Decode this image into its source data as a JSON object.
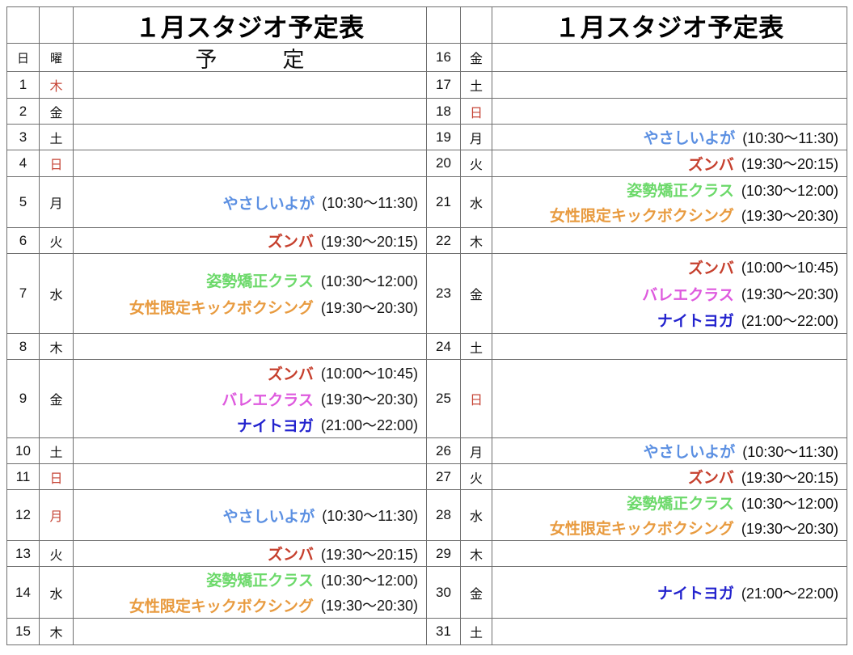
{
  "titles": {
    "left": "１月スタジオ予定表",
    "right": "１月スタジオ予定表"
  },
  "header": {
    "day": "日",
    "weekday": "曜",
    "schedule": "予　　　定"
  },
  "colors": {
    "border": "#6f6f6f",
    "holiday": "#c64537",
    "classes": {
      "yasashii_yoga": "#5c90e2",
      "zumba": "#c6402e",
      "shisei_kyosei": "#6cd96a",
      "kickboxing": "#e89b40",
      "ballet": "#de5ade",
      "night_yoga": "#2323ce"
    }
  },
  "days": [
    {
      "day": "1",
      "weekday": "木",
      "holiday": true,
      "entries": []
    },
    {
      "day": "2",
      "weekday": "金",
      "holiday": false,
      "entries": []
    },
    {
      "day": "3",
      "weekday": "土",
      "holiday": false,
      "entries": []
    },
    {
      "day": "4",
      "weekday": "日",
      "holiday": true,
      "entries": []
    },
    {
      "day": "5",
      "weekday": "月",
      "holiday": false,
      "entries": [
        {
          "label": "やさしいよが",
          "time": "(10:30〜11:30)",
          "color": "yasashii_yoga"
        }
      ]
    },
    {
      "day": "6",
      "weekday": "火",
      "holiday": false,
      "entries": [
        {
          "label": "ズンバ",
          "time": "(19:30〜20:15)",
          "color": "zumba"
        }
      ]
    },
    {
      "day": "7",
      "weekday": "水",
      "holiday": false,
      "entries": [
        {
          "label": "姿勢矯正クラス",
          "time": "(10:30〜12:00)",
          "color": "shisei_kyosei"
        },
        {
          "label": "女性限定キックボクシング",
          "time": "(19:30〜20:30)",
          "color": "kickboxing"
        }
      ]
    },
    {
      "day": "8",
      "weekday": "木",
      "holiday": false,
      "entries": []
    },
    {
      "day": "9",
      "weekday": "金",
      "holiday": false,
      "entries": [
        {
          "label": "ズンバ",
          "time": "(10:00〜10:45)",
          "color": "zumba"
        },
        {
          "label": "バレエクラス",
          "time": "(19:30〜20:30)",
          "color": "ballet"
        },
        {
          "label": "ナイトヨガ",
          "time": "(21:00〜22:00)",
          "color": "night_yoga"
        }
      ]
    },
    {
      "day": "10",
      "weekday": "土",
      "holiday": false,
      "entries": []
    },
    {
      "day": "11",
      "weekday": "日",
      "holiday": true,
      "entries": []
    },
    {
      "day": "12",
      "weekday": "月",
      "holiday": true,
      "entries": [
        {
          "label": "やさしいよが",
          "time": "(10:30〜11:30)",
          "color": "yasashii_yoga"
        }
      ]
    },
    {
      "day": "13",
      "weekday": "火",
      "holiday": false,
      "entries": [
        {
          "label": "ズンバ",
          "time": "(19:30〜20:15)",
          "color": "zumba"
        }
      ]
    },
    {
      "day": "14",
      "weekday": "水",
      "holiday": false,
      "entries": [
        {
          "label": "姿勢矯正クラス",
          "time": "(10:30〜12:00)",
          "color": "shisei_kyosei"
        },
        {
          "label": "女性限定キックボクシング",
          "time": "(19:30〜20:30)",
          "color": "kickboxing"
        }
      ]
    },
    {
      "day": "15",
      "weekday": "木",
      "holiday": false,
      "entries": []
    },
    {
      "day": "16",
      "weekday": "金",
      "holiday": false,
      "entries": []
    },
    {
      "day": "17",
      "weekday": "土",
      "holiday": false,
      "entries": []
    },
    {
      "day": "18",
      "weekday": "日",
      "holiday": true,
      "entries": []
    },
    {
      "day": "19",
      "weekday": "月",
      "holiday": false,
      "entries": [
        {
          "label": "やさしいよが",
          "time": "(10:30〜11:30)",
          "color": "yasashii_yoga"
        }
      ]
    },
    {
      "day": "20",
      "weekday": "火",
      "holiday": false,
      "entries": [
        {
          "label": "ズンバ",
          "time": "(19:30〜20:15)",
          "color": "zumba"
        }
      ]
    },
    {
      "day": "21",
      "weekday": "水",
      "holiday": false,
      "entries": [
        {
          "label": "姿勢矯正クラス",
          "time": "(10:30〜12:00)",
          "color": "shisei_kyosei"
        },
        {
          "label": "女性限定キックボクシング",
          "time": "(19:30〜20:30)",
          "color": "kickboxing"
        }
      ]
    },
    {
      "day": "22",
      "weekday": "木",
      "holiday": false,
      "entries": []
    },
    {
      "day": "23",
      "weekday": "金",
      "holiday": false,
      "entries": [
        {
          "label": "ズンバ",
          "time": "(10:00〜10:45)",
          "color": "zumba"
        },
        {
          "label": "バレエクラス",
          "time": "(19:30〜20:30)",
          "color": "ballet"
        },
        {
          "label": "ナイトヨガ",
          "time": "(21:00〜22:00)",
          "color": "night_yoga"
        }
      ]
    },
    {
      "day": "24",
      "weekday": "土",
      "holiday": false,
      "entries": []
    },
    {
      "day": "25",
      "weekday": "日",
      "holiday": true,
      "entries": []
    },
    {
      "day": "26",
      "weekday": "月",
      "holiday": false,
      "entries": [
        {
          "label": "やさしいよが",
          "time": "(10:30〜11:30)",
          "color": "yasashii_yoga"
        }
      ]
    },
    {
      "day": "27",
      "weekday": "火",
      "holiday": false,
      "entries": [
        {
          "label": "ズンバ",
          "time": "(19:30〜20:15)",
          "color": "zumba"
        }
      ]
    },
    {
      "day": "28",
      "weekday": "水",
      "holiday": false,
      "entries": [
        {
          "label": "姿勢矯正クラス",
          "time": "(10:30〜12:00)",
          "color": "shisei_kyosei"
        },
        {
          "label": "女性限定キックボクシング",
          "time": "(19:30〜20:30)",
          "color": "kickboxing"
        }
      ]
    },
    {
      "day": "29",
      "weekday": "木",
      "holiday": false,
      "entries": []
    },
    {
      "day": "30",
      "weekday": "金",
      "holiday": false,
      "entries": [
        {
          "label": "ナイトヨガ",
          "time": "(21:00〜22:00)",
          "color": "night_yoga"
        }
      ]
    },
    {
      "day": "31",
      "weekday": "土",
      "holiday": false,
      "entries": []
    }
  ]
}
